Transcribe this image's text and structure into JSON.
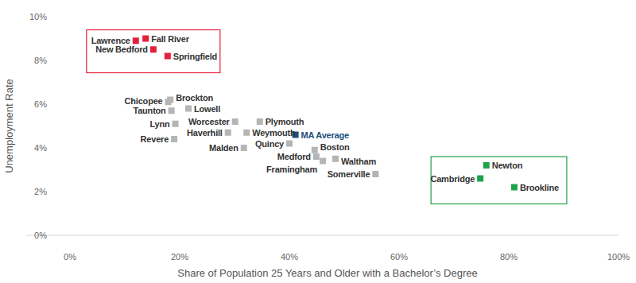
{
  "chart_data": {
    "type": "scatter",
    "x_label": "Share of Population 25 Years and Older with a Bachelor’s Degree",
    "y_label": "Unemployment Rate",
    "labels": [
      "Lawrence",
      "Fall River",
      "New Bedford",
      "Springfield",
      "Chicopee",
      "Brockton",
      "Lowell",
      "Taunton",
      "Lynn",
      "Revere",
      "Worcester",
      "Haverhill",
      "Plymouth",
      "Weymouth",
      "Malden",
      "Quincy",
      "MA Average",
      "Boston",
      "Medford",
      "Framingham",
      "Waltham",
      "Somerville",
      "Newton",
      "Cambridge",
      "Brookline"
    ],
    "x": [
      12.0,
      13.8,
      15.2,
      17.8,
      17.9,
      18.3,
      21.6,
      18.5,
      19.2,
      19.0,
      30.1,
      28.8,
      34.6,
      32.2,
      31.7,
      40.0,
      41.1,
      44.6,
      44.9,
      46.1,
      48.4,
      55.7,
      75.9,
      74.8,
      81.0
    ],
    "values": [
      8.9,
      9.0,
      8.5,
      8.2,
      6.1,
      6.2,
      5.8,
      5.7,
      5.1,
      4.4,
      5.2,
      4.7,
      5.2,
      4.7,
      4.0,
      4.2,
      4.6,
      3.9,
      3.6,
      3.4,
      3.5,
      2.8,
      3.2,
      2.6,
      2.2
    ],
    "colors": [
      "#e3203a",
      "#e3203a",
      "#e3203a",
      "#e3203a",
      "#b5b5b5",
      "#b5b5b5",
      "#b5b5b5",
      "#b5b5b5",
      "#b5b5b5",
      "#b5b5b5",
      "#b5b5b5",
      "#b5b5b5",
      "#b5b5b5",
      "#b5b5b5",
      "#b5b5b5",
      "#b5b5b5",
      "#1b4f7a",
      "#b5b5b5",
      "#b5b5b5",
      "#b5b5b5",
      "#b5b5b5",
      "#b5b5b5",
      "#1fa34a",
      "#1fa34a",
      "#1fa34a"
    ],
    "marker": "square",
    "grid": false,
    "xlim": [
      -8,
      100
    ],
    "ylim": [
      0,
      10
    ],
    "xticks": [
      {
        "value": 0,
        "label": "0%"
      },
      {
        "value": 20,
        "label": "20%"
      },
      {
        "value": 40,
        "label": "40%"
      },
      {
        "value": 60,
        "label": "60%"
      },
      {
        "value": 80,
        "label": "80%"
      },
      {
        "value": 100,
        "label": "100%"
      }
    ],
    "yticks": [
      {
        "value": 0,
        "label": "0%"
      },
      {
        "value": 2,
        "label": "2%"
      },
      {
        "value": 4,
        "label": "4%"
      },
      {
        "value": 6,
        "label": "6%"
      },
      {
        "value": 8,
        "label": "8%"
      },
      {
        "value": 10,
        "label": "10%"
      }
    ]
  }
}
